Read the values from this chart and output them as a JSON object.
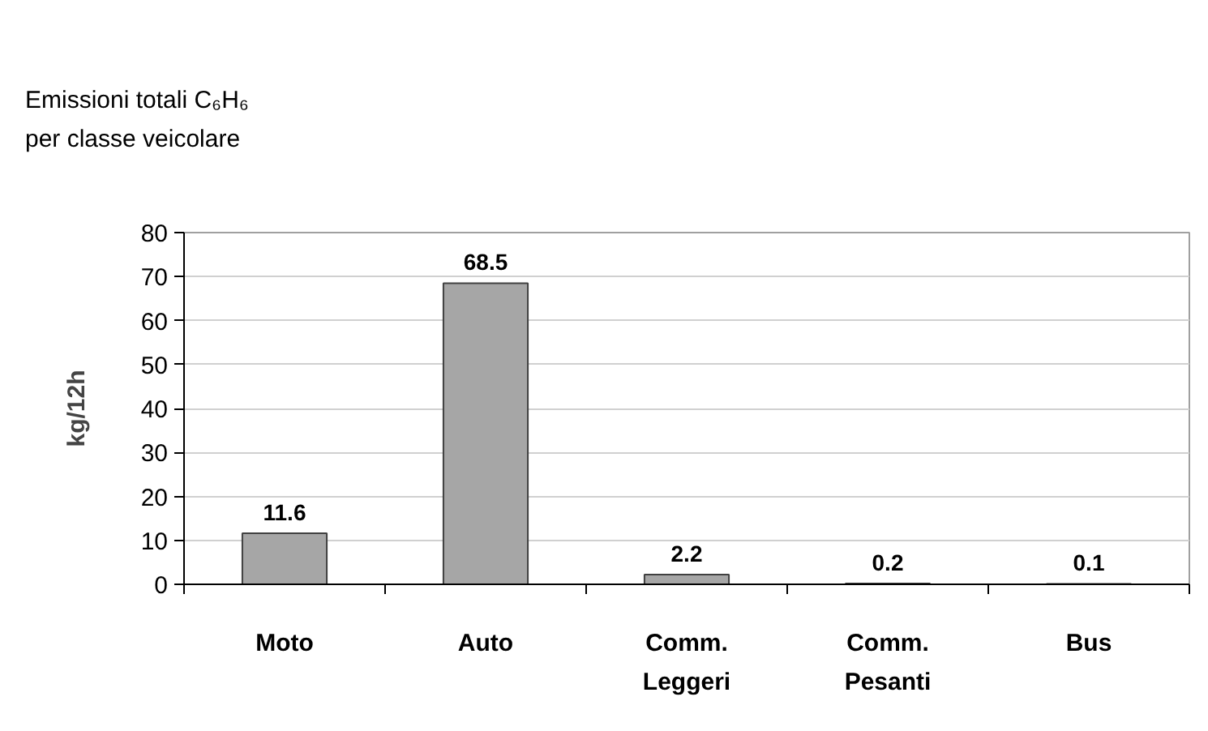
{
  "chart_data": {
    "type": "bar",
    "title": "Emissioni totali C₆H₆\nper classe veicolare",
    "ylabel": "kg/12h",
    "categories": [
      "Moto",
      "Auto",
      "Comm. Leggeri",
      "Comm. Pesanti",
      "Bus"
    ],
    "values": [
      11.6,
      68.5,
      2.2,
      0.2,
      0.1
    ],
    "color": "#a6a6a6",
    "ylim": [
      0,
      80
    ],
    "yticks": [
      0,
      10,
      20,
      30,
      40,
      50,
      60,
      70,
      80
    ],
    "grid": "y",
    "data_labels": true
  }
}
